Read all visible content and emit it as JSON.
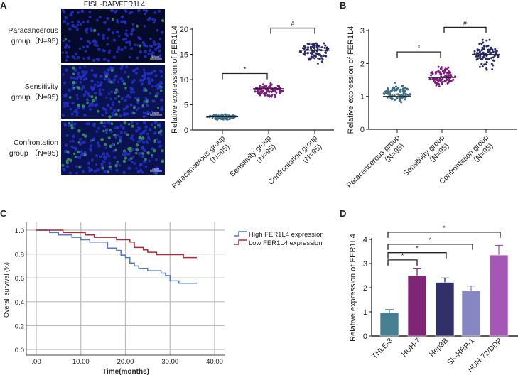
{
  "panels": {
    "a": "A",
    "b": "B",
    "c": "C",
    "d": "D"
  },
  "fish": {
    "title": "FISH-DAP/FER1L4",
    "rows": [
      {
        "line1": "Paracancerous",
        "line2": "group（N=95)",
        "green_density": 0.1
      },
      {
        "line1": "Sensitivity",
        "line2": "group（N=95)",
        "green_density": 0.5
      },
      {
        "line1": "Confrontation",
        "line2": "group （N=95)",
        "green_density": 0.8
      }
    ],
    "scale_bar": "25μm"
  },
  "chart_data": [
    {
      "id": "A",
      "type": "scatter",
      "ylabel": "Relative expression of FER1L4",
      "ylim": [
        0,
        20
      ],
      "yticks": [
        0,
        5,
        10,
        15,
        20
      ],
      "categories": [
        {
          "label1": "Paracancerous group",
          "label2": "（N=95)",
          "n": 95,
          "mean": 2.6,
          "min": 1.9,
          "max": 3.3,
          "color": "#3e6e86"
        },
        {
          "label1": "Sensitivity group",
          "label2": "（N=95)",
          "n": 95,
          "mean": 8.2,
          "min": 6.0,
          "max": 9.8,
          "color": "#7a1a7a"
        },
        {
          "label1": "Confrontation group",
          "label2": "（N=95)",
          "n": 95,
          "mean": 15.8,
          "min": 12.5,
          "max": 18.7,
          "color": "#2a2a66"
        }
      ],
      "annotations": [
        {
          "from": 0,
          "to": 1,
          "y": 11.2,
          "text": "*"
        },
        {
          "from": 1,
          "to": 2,
          "y": 20.2,
          "text": "#"
        }
      ]
    },
    {
      "id": "B",
      "type": "scatter",
      "ylabel": "Relative expression of FER1L4",
      "ylim": [
        0,
        3
      ],
      "yticks": [
        0,
        1,
        2,
        3
      ],
      "categories": [
        {
          "label1": "Paracancerous group",
          "label2": "（N=95)",
          "n": 95,
          "mean": 1.0,
          "min": 0.75,
          "max": 1.45,
          "color": "#3e6e86"
        },
        {
          "label1": "Sensitivity group",
          "label2": "（N=95)",
          "n": 95,
          "mean": 1.57,
          "min": 1.2,
          "max": 2.0,
          "color": "#7a1a7a"
        },
        {
          "label1": "Confrontation group",
          "label2": "（N=95)",
          "n": 95,
          "mean": 2.28,
          "min": 1.62,
          "max": 2.85,
          "color": "#2a2a66"
        }
      ],
      "annotations": [
        {
          "from": 0,
          "to": 1,
          "y": 2.35,
          "text": "*"
        },
        {
          "from": 1,
          "to": 2,
          "y": 3.1,
          "text": "#"
        }
      ]
    },
    {
      "id": "C",
      "type": "line",
      "xlabel": "Time(months)",
      "ylabel": "Overall survival (%)",
      "xlim": [
        0,
        40
      ],
      "ylim": [
        0,
        1
      ],
      "xticks": [
        ".00",
        "10.00",
        "20.00",
        "30.00",
        "40.00"
      ],
      "yticks": [
        "0.0",
        "0.2",
        "0.4",
        "0.6",
        "0.8",
        "1.0"
      ],
      "grid": true,
      "legend": "right",
      "series": [
        {
          "name": "High FER1L4 expression",
          "color": "#5577cc",
          "steps": [
            [
              0,
              1
            ],
            [
              3,
              0.98
            ],
            [
              5,
              0.96
            ],
            [
              8,
              0.94
            ],
            [
              10,
              0.92
            ],
            [
              12,
              0.9
            ],
            [
              16,
              0.85
            ],
            [
              18,
              0.83
            ],
            [
              19,
              0.79
            ],
            [
              20,
              0.77
            ],
            [
              21,
              0.725
            ],
            [
              22,
              0.7
            ],
            [
              23,
              0.68
            ],
            [
              25,
              0.66
            ],
            [
              28,
              0.64
            ],
            [
              29,
              0.62
            ],
            [
              30,
              0.575
            ],
            [
              32,
              0.555
            ],
            [
              36,
              0.555
            ]
          ]
        },
        {
          "name": "Low FER1L4 expression",
          "color": "#b0283a",
          "steps": [
            [
              0,
              1
            ],
            [
              6,
              0.98
            ],
            [
              11,
              0.96
            ],
            [
              13,
              0.94
            ],
            [
              18,
              0.92
            ],
            [
              21,
              0.9
            ],
            [
              22,
              0.855
            ],
            [
              24,
              0.835
            ],
            [
              25,
              0.815
            ],
            [
              27,
              0.795
            ],
            [
              33,
              0.77
            ],
            [
              36,
              0.77
            ]
          ]
        }
      ]
    },
    {
      "id": "D",
      "type": "bar",
      "ylabel": "Relative expression of FER1L4",
      "ylim": [
        0,
        4
      ],
      "yticks": [
        0,
        1,
        2,
        3,
        4
      ],
      "categories": [
        "THLE-3",
        "HUH-7",
        "Hep3B",
        "SK-HRP-1",
        "HUH-72/DDP"
      ],
      "values": [
        0.97,
        2.5,
        2.22,
        1.87,
        3.35
      ],
      "errors": [
        0.12,
        0.3,
        0.18,
        0.2,
        0.4
      ],
      "colors": [
        "#3e7a8e",
        "#7a1a6e",
        "#262660",
        "#8080c0",
        "#a050b0"
      ],
      "annotations": [
        {
          "from": 0,
          "to": 1,
          "y": 3.15,
          "text": "*"
        },
        {
          "from": 0,
          "to": 2,
          "y": 3.45,
          "text": "*"
        },
        {
          "from": 0,
          "to": 3,
          "y": 3.8,
          "text": "*"
        },
        {
          "from": 0,
          "to": 4,
          "y": 4.3,
          "text": "*"
        }
      ]
    }
  ]
}
